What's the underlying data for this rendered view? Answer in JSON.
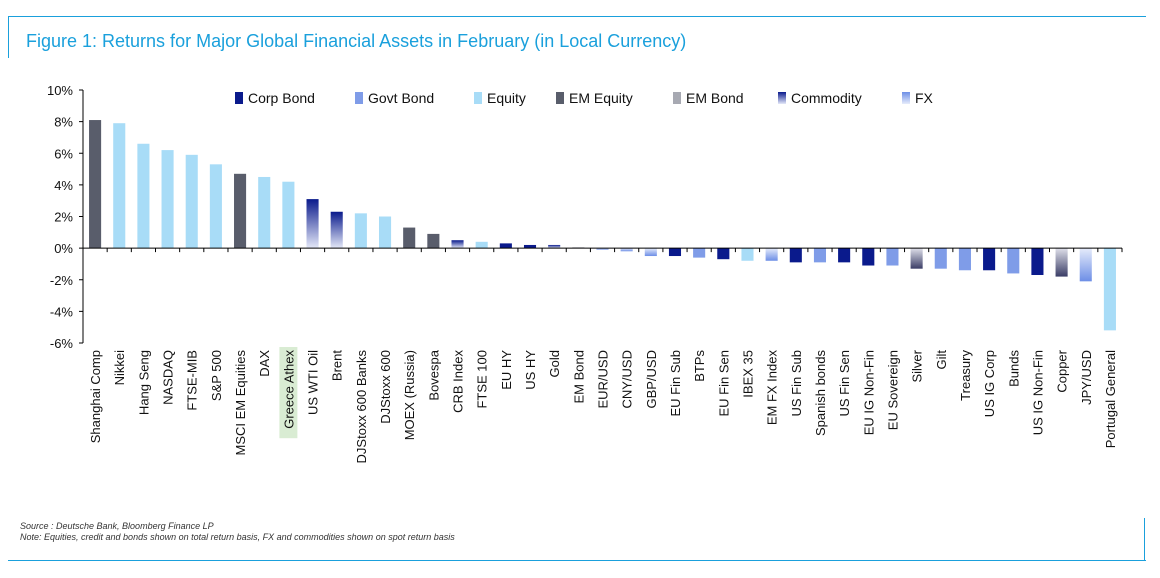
{
  "title": "Figure 1: Returns for Major Global Financial Assets in February (in Local Currency)",
  "source": "Source : Deutsche Bank, Bloomberg Finance LP",
  "note": "Note: Equities, credit and bonds shown on total return basis, FX and commodities shown on spot return basis",
  "colors": {
    "frame": "#1aa0dc",
    "Corp Bond": "#0a1a8c",
    "Govt Bond": "#7f9ce8",
    "Equity": "#a8dcf7",
    "EM Equity": "#595d6b",
    "EM Bond": "#a7a9b2",
    "highlight": "#d9ecd3"
  },
  "chart_data": {
    "type": "bar",
    "title": "Figure 1: Returns for Major Global Financial Assets in February (in Local Currency)",
    "xlabel": "",
    "ylabel": "",
    "ylim": [
      -6,
      10
    ],
    "yticks": [
      "10%",
      "8%",
      "6%",
      "4%",
      "2%",
      "0%",
      "-2%",
      "-4%",
      "-6%"
    ],
    "ytick_values": [
      10,
      8,
      6,
      4,
      2,
      0,
      -2,
      -4,
      -6
    ],
    "grid": false,
    "legend_position": "top",
    "legend": [
      "Corp Bond",
      "Govt Bond",
      "Equity",
      "EM Equity",
      "EM Bond",
      "Commodity",
      "FX"
    ],
    "highlight_category": "Greece Athex",
    "categories": [
      "Shanghai Comp",
      "Nikkei",
      "Hang Seng",
      "NASDAQ",
      "FTSE-MIB",
      "S&P 500",
      "MSCI EM Equities",
      "DAX",
      "Greece Athex",
      "US WTI Oil",
      "Brent",
      "DJStoxx 600 Banks",
      "DJStoxx 600",
      "MOEX (Russia)",
      "Bovespa",
      "CRB Index",
      "FTSE 100",
      "EU HY",
      "US HY",
      "Gold",
      "EM Bond",
      "EUR/USD",
      "CNY/USD",
      "GBP/USD",
      "EU Fin Sub",
      "BTPs",
      "EU Fin Sen",
      "IBEX 35",
      "EM FX Index",
      "US Fin Sub",
      "Spanish bonds",
      "US Fin Sen",
      "EU IG Non-Fin",
      "EU Sovereign",
      "Silver",
      "Gilt",
      "Treasury",
      "US IG Corp",
      "Bunds",
      "US IG Non-Fin",
      "Copper",
      "JPY/USD",
      "Portugal General"
    ],
    "values": [
      8.1,
      7.9,
      6.6,
      6.2,
      5.9,
      5.3,
      4.7,
      4.5,
      4.2,
      3.1,
      2.3,
      2.2,
      2.0,
      1.3,
      0.9,
      0.5,
      0.4,
      0.3,
      0.2,
      0.2,
      0.05,
      -0.1,
      -0.2,
      -0.5,
      -0.5,
      -0.6,
      -0.7,
      -0.8,
      -0.8,
      -0.9,
      -0.9,
      -0.9,
      -1.1,
      -1.1,
      -1.3,
      -1.3,
      -1.4,
      -1.4,
      -1.6,
      -1.7,
      -1.8,
      -2.1,
      -5.2
    ],
    "classes": [
      "EM Equity",
      "Equity",
      "Equity",
      "Equity",
      "Equity",
      "Equity",
      "EM Equity",
      "Equity",
      "Equity",
      "Commodity",
      "Commodity",
      "Equity",
      "Equity",
      "EM Equity",
      "EM Equity",
      "Commodity",
      "Equity",
      "Corp Bond",
      "Corp Bond",
      "Commodity",
      "EM Bond",
      "FX",
      "FX",
      "FX",
      "Corp Bond",
      "Govt Bond",
      "Corp Bond",
      "Equity",
      "FX",
      "Corp Bond",
      "Govt Bond",
      "Corp Bond",
      "Corp Bond",
      "Govt Bond",
      "Commodity",
      "Govt Bond",
      "Govt Bond",
      "Corp Bond",
      "Govt Bond",
      "Corp Bond",
      "Commodity",
      "FX",
      "Equity"
    ]
  }
}
